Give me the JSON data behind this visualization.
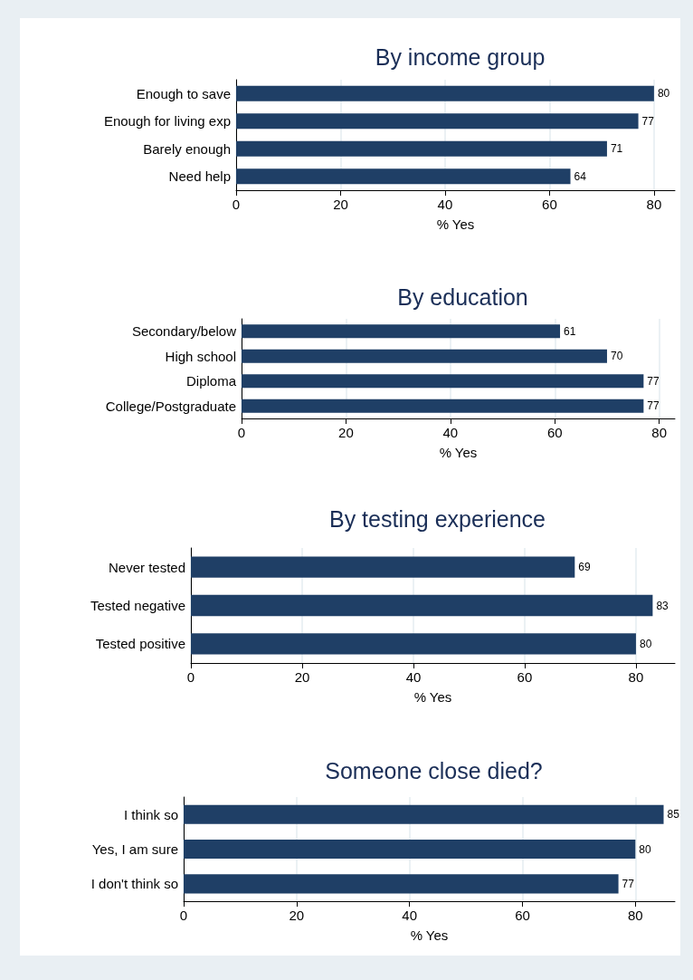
{
  "chart_data": [
    {
      "type": "bar",
      "orientation": "horizontal",
      "title": "By income group",
      "xlabel": "% Yes",
      "categories": [
        "Enough to save",
        "Enough for living exp",
        "Barely enough",
        "Need help"
      ],
      "values": [
        80,
        77,
        71,
        64
      ],
      "color": "#1f3f66",
      "xlim": [
        0,
        84
      ],
      "xticks": [
        0,
        20,
        40,
        60,
        80
      ],
      "grid": "x",
      "data_labels": true
    },
    {
      "type": "bar",
      "orientation": "horizontal",
      "title": "By education",
      "xlabel": "% Yes",
      "categories": [
        "Secondary/below",
        "High school",
        "Diploma",
        "College/Postgraduate"
      ],
      "values": [
        61,
        70,
        77,
        77
      ],
      "color": "#1f3f66",
      "xlim": [
        0,
        83
      ],
      "xticks": [
        0,
        20,
        40,
        60,
        80
      ],
      "grid": "x",
      "data_labels": true
    },
    {
      "type": "bar",
      "orientation": "horizontal",
      "title": "By testing experience",
      "xlabel": "% Yes",
      "categories": [
        "Never tested",
        "Tested negative",
        "Tested positive"
      ],
      "values": [
        69,
        83,
        80
      ],
      "color": "#1f3f66",
      "xlim": [
        0,
        87
      ],
      "xticks": [
        0,
        20,
        40,
        60,
        80
      ],
      "grid": "x",
      "data_labels": true
    },
    {
      "type": "bar",
      "orientation": "horizontal",
      "title": "Someone close died?",
      "xlabel": "% Yes",
      "categories": [
        "I think so",
        "Yes, I am sure",
        "I don't think so"
      ],
      "values": [
        85,
        80,
        77
      ],
      "color": "#1f3f66",
      "xlim": [
        0,
        87
      ],
      "xticks": [
        0,
        20,
        40,
        60,
        80
      ],
      "grid": "x",
      "data_labels": true
    }
  ]
}
